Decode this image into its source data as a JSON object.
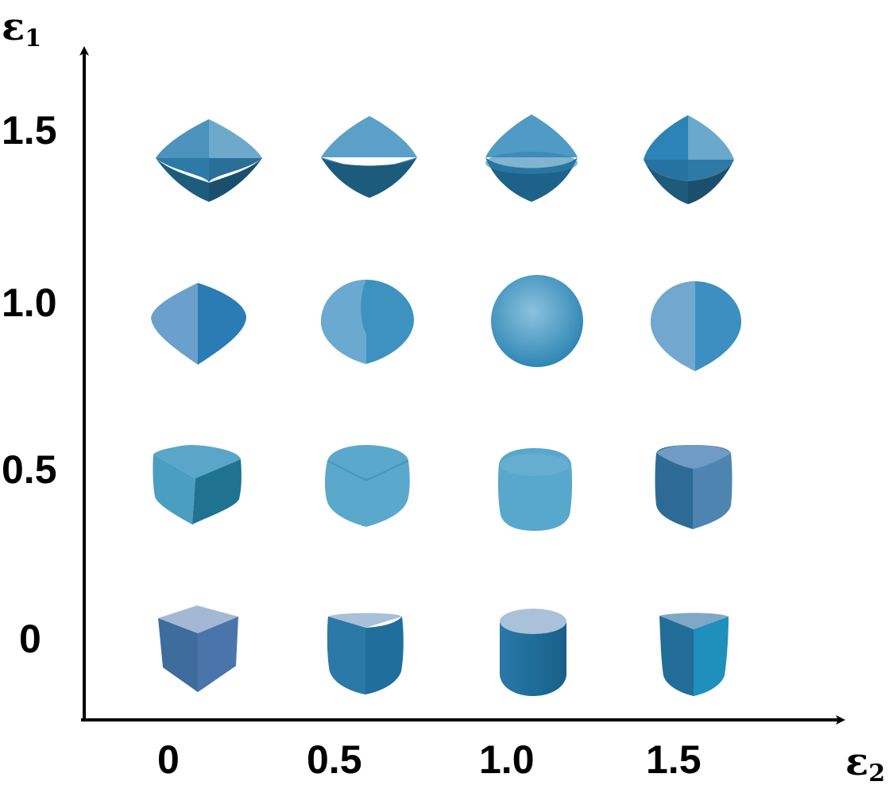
{
  "axes": {
    "y_symbol": "ε",
    "y_subscript": "1",
    "x_symbol": "ε",
    "x_subscript": "2"
  },
  "y_ticks": [
    "1.5",
    "1.0",
    "0.5",
    "0"
  ],
  "x_ticks": [
    "0",
    "0.5",
    "1.0",
    "1.5"
  ],
  "grid": {
    "description_by_param": "superquadric shapes for each (ε1, ε2) pair",
    "eps1_values": [
      1.5,
      1.0,
      0.5,
      0
    ],
    "eps2_values": [
      0,
      0.5,
      1.0,
      1.5
    ]
  },
  "colors": {
    "shape_light": "#7fb8d8",
    "shape_mid": "#3d92c0",
    "shape_dark": "#1f5f80",
    "axis": "#000000"
  }
}
